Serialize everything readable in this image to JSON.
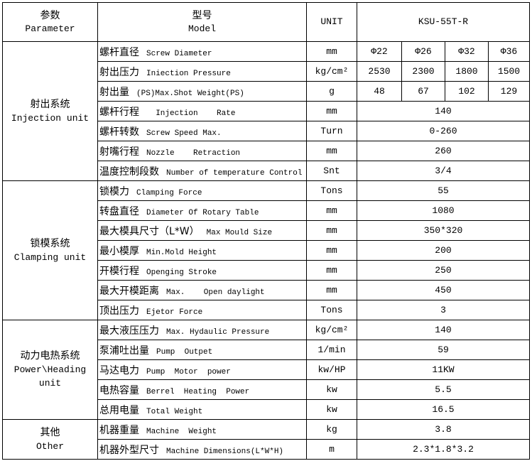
{
  "header": {
    "group_cn": "参数",
    "group_en": "Parameter",
    "param_cn": "型号",
    "param_en": "Model",
    "unit": "UNIT",
    "model": "KSU-55T-R"
  },
  "groups": [
    {
      "cn": "射出系统",
      "en": "Injection unit",
      "rows": [
        {
          "cn": "螺杆直径",
          "en": "Screw Diameter",
          "unit": "mm",
          "values": [
            "Φ22",
            "Φ26",
            "Φ32",
            "Φ36"
          ]
        },
        {
          "cn": "射出压力",
          "en": "Iniection Pressure",
          "unit": "kg/cm²",
          "values": [
            "2530",
            "2300",
            "1800",
            "1500"
          ]
        },
        {
          "cn": "射出量",
          "en": "(PS)Max.Shot Weight(PS)",
          "unit": "g",
          "values": [
            "48",
            "67",
            "102",
            "129"
          ]
        },
        {
          "cn": "螺杆行程",
          "en": "  Injection    Rate",
          "unit": "mm",
          "values": [
            "140"
          ]
        },
        {
          "cn": "螺杆转数",
          "en": "Screw Speed Max.",
          "unit": "Turn",
          "values": [
            "0-260"
          ]
        },
        {
          "cn": "射嘴行程",
          "en": "Nozzle    Retraction",
          "unit": "mm",
          "values": [
            "260"
          ]
        },
        {
          "cn": "温度控制段数",
          "en": "Number of temperature Control",
          "unit": "Snt",
          "values": [
            "3/4"
          ]
        }
      ]
    },
    {
      "cn": "锁模系统",
      "en": "Clamping unit",
      "rows": [
        {
          "cn": "锁模力",
          "en": "Clamping Force",
          "unit": "Tons",
          "values": [
            "55"
          ]
        },
        {
          "cn": "转盘直径",
          "en": "Diameter Of Rotary Table",
          "unit": "mm",
          "values": [
            "1080"
          ]
        },
        {
          "cn": "最大模具尺寸（L*W）",
          "en": "Max Mould Size",
          "unit": "mm",
          "values": [
            "350*320"
          ]
        },
        {
          "cn": "最小模厚",
          "en": "Min.Mold Height",
          "unit": "mm",
          "values": [
            "200"
          ]
        },
        {
          "cn": "开模行程",
          "en": "Openging Stroke",
          "unit": "mm",
          "values": [
            "250"
          ]
        },
        {
          "cn": "最大开模距离",
          "en": "Max.    Open daylight",
          "unit": "mm",
          "values": [
            "450"
          ]
        },
        {
          "cn": "顶出压力",
          "en": "Ejetor Force",
          "unit": "Tons",
          "values": [
            "3"
          ]
        }
      ]
    },
    {
      "cn": "动力电热系统",
      "en": "Power\\Heading unit",
      "rows": [
        {
          "cn": "最大液压压力",
          "en": "Max. Hydaulic Pressure",
          "unit": "kg/cm²",
          "values": [
            "140"
          ]
        },
        {
          "cn": "泵浦吐出量",
          "en": "Pump  Outpet",
          "unit": "1/min",
          "values": [
            "59"
          ]
        },
        {
          "cn": "马达电力",
          "en": "Pump  Motor  power",
          "unit": "kw/HP",
          "values": [
            "11KW"
          ]
        },
        {
          "cn": "电热容量",
          "en": "Berrel  Heating  Power",
          "unit": "kw",
          "values": [
            "5.5"
          ]
        },
        {
          "cn": "总用电量",
          "en": "Total Weight",
          "unit": "kw",
          "values": [
            "16.5"
          ]
        }
      ]
    },
    {
      "cn": "其他",
      "en": "Other",
      "rows": [
        {
          "cn": "机器重量",
          "en": "Machine  Weight",
          "unit": "kg",
          "values": [
            "3.8"
          ]
        },
        {
          "cn": "机器外型尺寸",
          "en": "Machine Dimensions(L*W*H)",
          "unit": "m",
          "values": [
            "2.3*1.8*3.2"
          ]
        }
      ]
    }
  ]
}
